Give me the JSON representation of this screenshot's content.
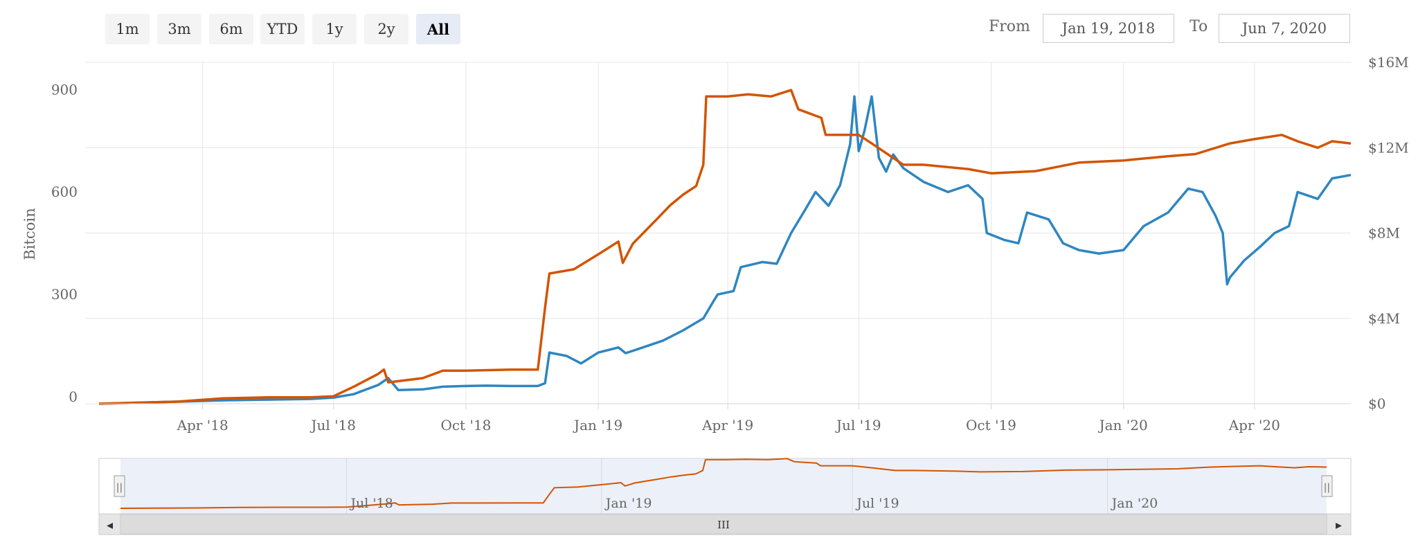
{
  "range_selector": {
    "buttons": [
      {
        "label": "1m",
        "active": false
      },
      {
        "label": "3m",
        "active": false
      },
      {
        "label": "6m",
        "active": false
      },
      {
        "label": "YTD",
        "active": false
      },
      {
        "label": "1y",
        "active": false
      },
      {
        "label": "2y",
        "active": false
      },
      {
        "label": "All",
        "active": true
      }
    ],
    "from_label": "From",
    "from_value": "Jan 19, 2018",
    "to_label": "To",
    "to_value": "Jun 7, 2020"
  },
  "navigator": {
    "labels": [
      "Jul '18",
      "Jan '19",
      "Jul '19",
      "Jan '20"
    ],
    "scroll_left_icon": "◂",
    "scroll_right_icon": "▸",
    "scroll_grip": "III",
    "handle_grip": "||"
  },
  "colors": {
    "series_blue": "#2e86c1",
    "series_orange": "#d35400",
    "grid": "#e6e6e6",
    "navigator_mask": "#e6ebf5"
  },
  "chart_data": {
    "type": "line",
    "xlabel": "",
    "ylabel": "Bitcoin",
    "ylim": [
      0,
      1000
    ],
    "y2lim": [
      0,
      16000000
    ],
    "y_ticks": [
      "0",
      "300",
      "600",
      "900"
    ],
    "y2_ticks": [
      "$0",
      "$4M",
      "$8M",
      "$12M",
      "$16M"
    ],
    "x_ticks": [
      "Apr '18",
      "Jul '18",
      "Oct '18",
      "Jan '19",
      "Apr '19",
      "Jul '19",
      "Oct '19",
      "Jan '20",
      "Apr '20"
    ],
    "grid": true,
    "series": [
      {
        "axis": "left",
        "color": "#2e86c1",
        "points": [
          [
            "2018-01-19",
            0
          ],
          [
            "2018-02-15",
            3
          ],
          [
            "2018-03-15",
            6
          ],
          [
            "2018-04-15",
            10
          ],
          [
            "2018-05-15",
            12
          ],
          [
            "2018-06-15",
            14
          ],
          [
            "2018-07-01",
            18
          ],
          [
            "2018-07-15",
            28
          ],
          [
            "2018-08-01",
            55
          ],
          [
            "2018-08-08",
            75
          ],
          [
            "2018-08-15",
            40
          ],
          [
            "2018-09-01",
            42
          ],
          [
            "2018-09-15",
            50
          ],
          [
            "2018-10-01",
            52
          ],
          [
            "2018-10-15",
            53
          ],
          [
            "2018-11-01",
            52
          ],
          [
            "2018-11-20",
            52
          ],
          [
            "2018-11-25",
            60
          ],
          [
            "2018-11-28",
            150
          ],
          [
            "2018-12-10",
            140
          ],
          [
            "2018-12-20",
            118
          ],
          [
            "2019-01-01",
            150
          ],
          [
            "2019-01-15",
            165
          ],
          [
            "2019-01-20",
            148
          ],
          [
            "2019-02-01",
            165
          ],
          [
            "2019-02-15",
            185
          ],
          [
            "2019-03-01",
            215
          ],
          [
            "2019-03-15",
            250
          ],
          [
            "2019-03-22",
            300
          ],
          [
            "2019-03-25",
            320
          ],
          [
            "2019-04-05",
            330
          ],
          [
            "2019-04-10",
            400
          ],
          [
            "2019-04-25",
            415
          ],
          [
            "2019-05-05",
            410
          ],
          [
            "2019-05-15",
            500
          ],
          [
            "2019-05-25",
            570
          ],
          [
            "2019-06-01",
            620
          ],
          [
            "2019-06-10",
            580
          ],
          [
            "2019-06-18",
            640
          ],
          [
            "2019-06-25",
            760
          ],
          [
            "2019-06-28",
            900
          ],
          [
            "2019-07-01",
            740
          ],
          [
            "2019-07-05",
            800
          ],
          [
            "2019-07-10",
            900
          ],
          [
            "2019-07-15",
            720
          ],
          [
            "2019-07-20",
            680
          ],
          [
            "2019-07-25",
            730
          ],
          [
            "2019-08-01",
            690
          ],
          [
            "2019-08-15",
            650
          ],
          [
            "2019-09-01",
            620
          ],
          [
            "2019-09-15",
            640
          ],
          [
            "2019-09-25",
            600
          ],
          [
            "2019-09-28",
            500
          ],
          [
            "2019-10-10",
            480
          ],
          [
            "2019-10-20",
            470
          ],
          [
            "2019-10-26",
            560
          ],
          [
            "2019-11-10",
            540
          ],
          [
            "2019-11-20",
            470
          ],
          [
            "2019-12-01",
            450
          ],
          [
            "2019-12-15",
            440
          ],
          [
            "2020-01-01",
            450
          ],
          [
            "2020-01-15",
            520
          ],
          [
            "2020-02-01",
            560
          ],
          [
            "2020-02-15",
            630
          ],
          [
            "2020-02-25",
            620
          ],
          [
            "2020-03-05",
            550
          ],
          [
            "2020-03-10",
            500
          ],
          [
            "2020-03-13",
            350
          ],
          [
            "2020-03-15",
            370
          ],
          [
            "2020-03-25",
            420
          ],
          [
            "2020-04-05",
            460
          ],
          [
            "2020-04-15",
            500
          ],
          [
            "2020-04-25",
            520
          ],
          [
            "2020-05-01",
            620
          ],
          [
            "2020-05-15",
            600
          ],
          [
            "2020-05-25",
            660
          ],
          [
            "2020-06-07",
            670
          ]
        ]
      },
      {
        "axis": "right",
        "color": "#d35400",
        "points": [
          [
            "2018-01-19",
            0
          ],
          [
            "2018-02-15",
            50000
          ],
          [
            "2018-03-15",
            100000
          ],
          [
            "2018-04-15",
            250000
          ],
          [
            "2018-05-15",
            300000
          ],
          [
            "2018-06-15",
            300000
          ],
          [
            "2018-07-01",
            350000
          ],
          [
            "2018-07-15",
            800000
          ],
          [
            "2018-08-01",
            1400000
          ],
          [
            "2018-08-05",
            1600000
          ],
          [
            "2018-08-08",
            1000000
          ],
          [
            "2018-08-20",
            1100000
          ],
          [
            "2018-09-01",
            1200000
          ],
          [
            "2018-09-15",
            1550000
          ],
          [
            "2018-10-01",
            1550000
          ],
          [
            "2018-11-01",
            1600000
          ],
          [
            "2018-11-20",
            1600000
          ],
          [
            "2018-11-25",
            4500000
          ],
          [
            "2018-11-28",
            6100000
          ],
          [
            "2018-12-15",
            6300000
          ],
          [
            "2019-01-01",
            7000000
          ],
          [
            "2019-01-15",
            7600000
          ],
          [
            "2019-01-18",
            6600000
          ],
          [
            "2019-01-25",
            7500000
          ],
          [
            "2019-02-10",
            8600000
          ],
          [
            "2019-02-20",
            9300000
          ],
          [
            "2019-03-01",
            9800000
          ],
          [
            "2019-03-10",
            10200000
          ],
          [
            "2019-03-15",
            11200000
          ],
          [
            "2019-03-17",
            14400000
          ],
          [
            "2019-04-01",
            14400000
          ],
          [
            "2019-04-15",
            14500000
          ],
          [
            "2019-05-01",
            14400000
          ],
          [
            "2019-05-15",
            14700000
          ],
          [
            "2019-05-20",
            13800000
          ],
          [
            "2019-06-05",
            13400000
          ],
          [
            "2019-06-08",
            12600000
          ],
          [
            "2019-07-01",
            12600000
          ],
          [
            "2019-07-10",
            12200000
          ],
          [
            "2019-08-01",
            11200000
          ],
          [
            "2019-08-15",
            11200000
          ],
          [
            "2019-09-15",
            11000000
          ],
          [
            "2019-10-01",
            10800000
          ],
          [
            "2019-11-01",
            10900000
          ],
          [
            "2019-12-01",
            11300000
          ],
          [
            "2020-01-01",
            11400000
          ],
          [
            "2020-02-01",
            11600000
          ],
          [
            "2020-02-20",
            11700000
          ],
          [
            "2020-03-15",
            12200000
          ],
          [
            "2020-04-01",
            12400000
          ],
          [
            "2020-04-20",
            12600000
          ],
          [
            "2020-05-01",
            12300000
          ],
          [
            "2020-05-15",
            12000000
          ],
          [
            "2020-05-25",
            12300000
          ],
          [
            "2020-06-07",
            12200000
          ]
        ]
      }
    ]
  }
}
